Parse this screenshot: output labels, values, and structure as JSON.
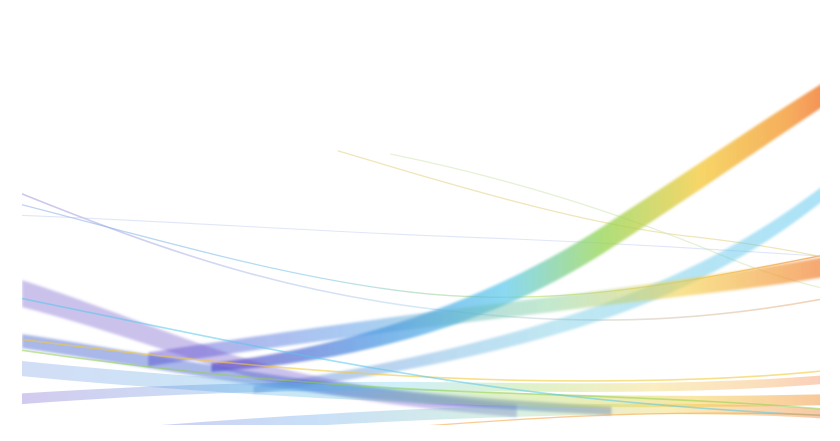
{
  "image": {
    "description_free": true,
    "background_color": "#ffffff",
    "palette": {
      "violet": "#6a4fc8",
      "blue": "#3f8fe0",
      "cyan": "#54c6ec",
      "green": "#8fd24a",
      "yellow": "#f3c93a",
      "orange": "#f39a2f",
      "red": "#f0532b"
    }
  }
}
